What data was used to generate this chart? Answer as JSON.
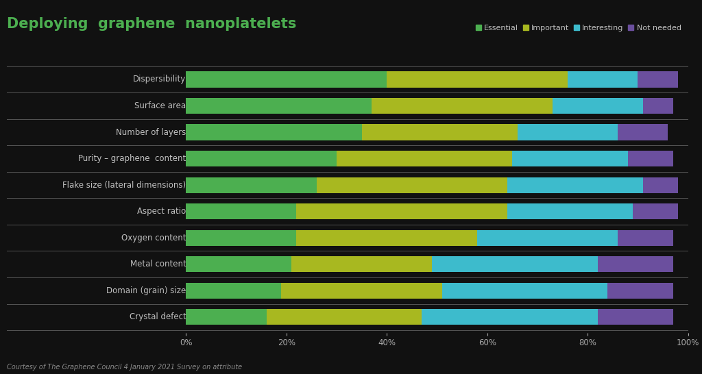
{
  "title": "Deploying  graphene  nanoplatelets",
  "categories": [
    "Dispersibility",
    "Surface area",
    "Number of layers",
    "Purity – graphene  content",
    "Flake size (lateral dimensions)",
    "Aspect ratio",
    "Oxygen content",
    "Metal content",
    "Domain (grain) size",
    "Crystal defect"
  ],
  "legend_labels": [
    "Essential",
    "Important",
    "Interesting",
    "Not needed"
  ],
  "colors": [
    "#4CAF50",
    "#A8B820",
    "#3DBBCC",
    "#6B4F9E"
  ],
  "data": [
    [
      40,
      36,
      14,
      8
    ],
    [
      37,
      36,
      18,
      6
    ],
    [
      35,
      31,
      20,
      10
    ],
    [
      30,
      35,
      23,
      9
    ],
    [
      26,
      38,
      27,
      7
    ],
    [
      22,
      42,
      25,
      9
    ],
    [
      22,
      36,
      28,
      11
    ],
    [
      21,
      28,
      33,
      15
    ],
    [
      19,
      32,
      33,
      13
    ],
    [
      16,
      31,
      35,
      15
    ]
  ],
  "background_color": "#111111",
  "text_color": "#c0c0c0",
  "axis_label_color": "#aaaaaa",
  "footnote": "Courtesy of The Graphene Council 4 January 2021 Survey on attribute",
  "title_color": "#4CAF50",
  "bar_height": 0.6,
  "xlim": [
    0,
    100
  ],
  "separator_color": "#555555",
  "separator_linewidth": 0.7
}
